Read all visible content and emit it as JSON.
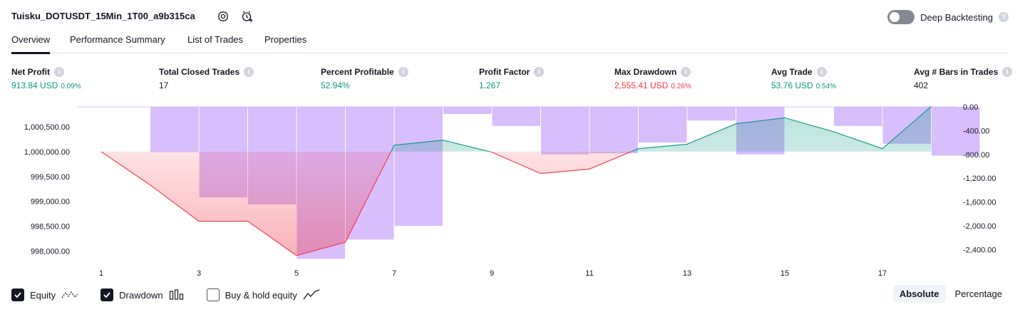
{
  "header": {
    "strategy_name": "Tuisku_DOTUSDT_15Min_1T00_a9b315ca",
    "icons": [
      "settings-icon",
      "add-alert-icon"
    ],
    "deep_backtesting_label": "Deep Backtesting",
    "deep_backtesting_enabled": false
  },
  "tabs": [
    {
      "label": "Overview",
      "active": true
    },
    {
      "label": "Performance Summary",
      "active": false
    },
    {
      "label": "List of Trades",
      "active": false
    },
    {
      "label": "Properties",
      "active": false
    }
  ],
  "metrics": [
    {
      "label": "Net Profit",
      "value": "913.84 USD",
      "pct": "0.09%",
      "color": "#089981"
    },
    {
      "label": "Total Closed Trades",
      "value": "17",
      "pct": "",
      "color": "#131722"
    },
    {
      "label": "Percent Profitable",
      "value": "52.94%",
      "pct": "",
      "color": "#089981"
    },
    {
      "label": "Profit Factor",
      "value": "1.267",
      "pct": "",
      "color": "#089981"
    },
    {
      "label": "Max Drawdown",
      "value": "2,555.41 USD",
      "pct": "0.26%",
      "color": "#f23645"
    },
    {
      "label": "Avg Trade",
      "value": "53.76 USD",
      "pct": "0.54%",
      "color": "#089981"
    },
    {
      "label": "Avg # Bars in Trades",
      "value": "402",
      "pct": "",
      "color": "#131722"
    }
  ],
  "chart_data": {
    "type": "area",
    "x_ticks": [
      "1",
      "3",
      "5",
      "7",
      "9",
      "11",
      "13",
      "15",
      "17"
    ],
    "left_axis_ticks": [
      "1,000,500.00",
      "1,000,000.00",
      "999,500.00",
      "999,000.00",
      "998,500.00",
      "998,000.00"
    ],
    "right_axis_ticks": [
      "0.00",
      "-400.00",
      "-800.00",
      "-1,200.00",
      "-1,600.00",
      "-2,000.00",
      "-2,400.00"
    ],
    "left_ylim": [
      997850,
      1000900
    ],
    "right_ylim": [
      -2550,
      0
    ],
    "baseline": 1000000,
    "equity": {
      "x": [
        1,
        2,
        3,
        4,
        5,
        6,
        7,
        8,
        9,
        10,
        11,
        12,
        13,
        14,
        15,
        16,
        17,
        18
      ],
      "values": [
        1000000,
        999330,
        998600,
        998600,
        997910,
        998180,
        1000130,
        1000230,
        999990,
        999560,
        999650,
        1000060,
        1000150,
        1000560,
        1000680,
        1000400,
        1000060,
        1000910
      ]
    },
    "drawdown": {
      "x": [
        1,
        2,
        3,
        4,
        5,
        6,
        7,
        8,
        9,
        10,
        11,
        12,
        13,
        14,
        15,
        16,
        17,
        18
      ],
      "values": [
        0,
        -760,
        -1520,
        -1640,
        -2555,
        -2230,
        -2000,
        -120,
        -320,
        -800,
        -780,
        -600,
        -230,
        -800,
        0,
        -320,
        -620,
        -820
      ]
    },
    "colors": {
      "gain": "#089981",
      "loss": "#f23645",
      "drawdown": "#d1b3fb"
    }
  },
  "legend": [
    {
      "label": "Equity",
      "checked": true,
      "icon": "equity-line-icon"
    },
    {
      "label": "Drawdown",
      "checked": true,
      "icon": "drawdown-bars-icon"
    },
    {
      "label": "Buy & hold equity",
      "checked": false,
      "icon": "buy-hold-line-icon"
    }
  ],
  "modes": [
    {
      "label": "Absolute",
      "active": true
    },
    {
      "label": "Percentage",
      "active": false
    }
  ]
}
